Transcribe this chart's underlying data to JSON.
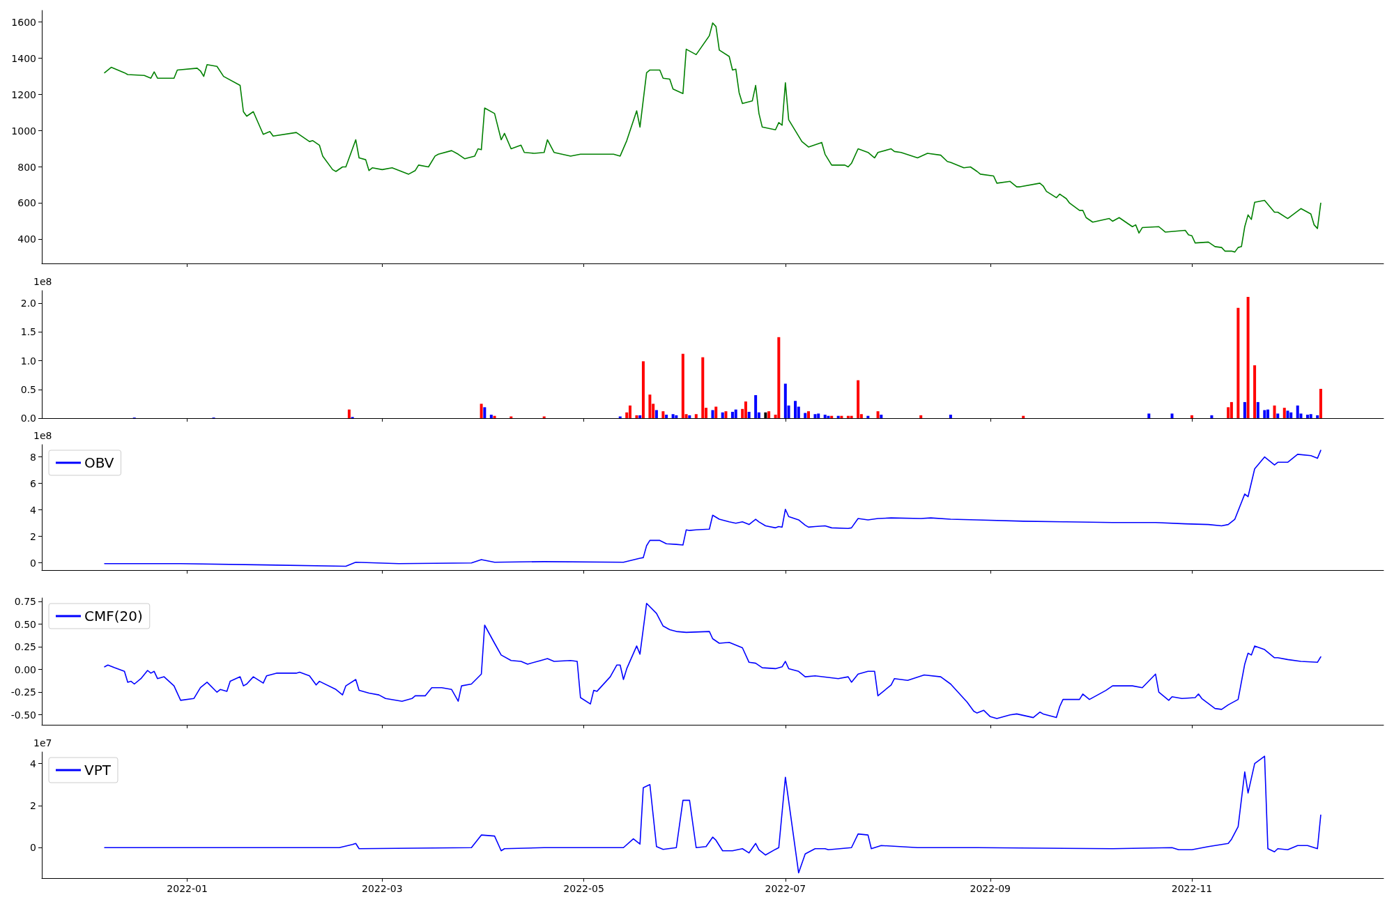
{
  "chart_data": [
    {
      "type": "line",
      "tick_labels": "y",
      "grid": false,
      "legend": false,
      "xlim": [
        "2021-11-18",
        "2022-12-29"
      ],
      "xticks": [
        "2022-01",
        "2022-03",
        "2022-05",
        "2022-07",
        "2022-09",
        "2022-11"
      ],
      "ylim": [
        267,
        1664
      ],
      "yticks": [
        400,
        600,
        800,
        1000,
        1200,
        1400,
        1600
      ],
      "x": [
        "2021-12-07",
        "2021-12-09",
        "2021-12-13",
        "2021-12-14",
        "2021-12-19",
        "2021-12-21",
        "2021-12-22",
        "2021-12-23",
        "2021-12-28",
        "2021-12-29",
        "2022-01-04",
        "2022-01-05",
        "2022-01-06",
        "2022-01-07",
        "2022-01-10",
        "2022-01-12",
        "2022-01-17",
        "2022-01-18",
        "2022-01-19",
        "2022-01-21",
        "2022-01-24",
        "2022-01-26",
        "2022-01-27",
        "2022-02-03",
        "2022-02-07",
        "2022-02-08",
        "2022-02-10",
        "2022-02-11",
        "2022-02-14",
        "2022-02-15",
        "2022-02-17",
        "2022-02-18",
        "2022-02-21",
        "2022-02-22",
        "2022-02-24",
        "2022-02-25",
        "2022-02-26",
        "2022-03-01",
        "2022-03-04",
        "2022-03-09",
        "2022-03-11",
        "2022-03-12",
        "2022-03-15",
        "2022-03-17",
        "2022-03-18",
        "2022-03-22",
        "2022-03-24",
        "2022-03-26",
        "2022-03-29",
        "2022-03-30",
        "2022-03-31",
        "2022-04-01",
        "2022-04-04",
        "2022-04-06",
        "2022-04-07",
        "2022-04-09",
        "2022-04-12",
        "2022-04-13",
        "2022-04-16",
        "2022-04-19",
        "2022-04-20",
        "2022-04-22",
        "2022-04-27",
        "2022-04-30",
        "2022-05-10",
        "2022-05-12",
        "2022-05-14",
        "2022-05-17",
        "2022-05-18",
        "2022-05-20",
        "2022-05-21",
        "2022-05-24",
        "2022-05-25",
        "2022-05-27",
        "2022-05-28",
        "2022-05-31",
        "2022-06-01",
        "2022-06-04",
        "2022-06-08",
        "2022-06-09",
        "2022-06-10",
        "2022-06-11",
        "2022-06-14",
        "2022-06-15",
        "2022-06-16",
        "2022-06-17",
        "2022-06-18",
        "2022-06-21",
        "2022-06-22",
        "2022-06-23",
        "2022-06-24",
        "2022-06-28",
        "2022-06-29",
        "2022-06-30",
        "2022-07-01",
        "2022-07-02",
        "2022-07-06",
        "2022-07-08",
        "2022-07-12",
        "2022-07-13",
        "2022-07-15",
        "2022-07-19",
        "2022-07-20",
        "2022-07-21",
        "2022-07-23",
        "2022-07-26",
        "2022-07-28",
        "2022-07-29",
        "2022-08-02",
        "2022-08-03",
        "2022-08-05",
        "2022-08-10",
        "2022-08-13",
        "2022-08-17",
        "2022-08-19",
        "2022-08-20",
        "2022-08-24",
        "2022-08-26",
        "2022-08-28",
        "2022-08-29",
        "2022-09-02",
        "2022-09-03",
        "2022-09-07",
        "2022-09-09",
        "2022-09-10",
        "2022-09-16",
        "2022-09-17",
        "2022-09-18",
        "2022-09-21",
        "2022-09-22",
        "2022-09-24",
        "2022-09-25",
        "2022-09-28",
        "2022-09-29",
        "2022-09-30",
        "2022-10-02",
        "2022-10-07",
        "2022-10-08",
        "2022-10-10",
        "2022-10-14",
        "2022-10-15",
        "2022-10-16",
        "2022-10-17",
        "2022-10-22",
        "2022-10-24",
        "2022-10-30",
        "2022-10-31",
        "2022-11-01",
        "2022-11-02",
        "2022-11-06",
        "2022-11-08",
        "2022-11-10",
        "2022-11-11",
        "2022-11-13",
        "2022-11-14",
        "2022-11-15",
        "2022-11-16",
        "2022-11-17",
        "2022-11-18",
        "2022-11-19",
        "2022-11-20",
        "2022-11-23",
        "2022-11-26",
        "2022-11-27",
        "2022-11-30",
        "2022-12-04",
        "2022-12-07",
        "2022-12-08",
        "2022-12-09",
        "2022-12-10"
      ],
      "series": [
        {
          "color": "#008000",
          "values": [
            1320,
            1350,
            1320,
            1310,
            1305,
            1290,
            1325,
            1290,
            1290,
            1335,
            1345,
            1330,
            1300,
            1365,
            1355,
            1300,
            1250,
            1105,
            1080,
            1105,
            980,
            995,
            970,
            990,
            940,
            945,
            920,
            860,
            785,
            775,
            800,
            800,
            950,
            850,
            840,
            780,
            795,
            785,
            795,
            760,
            780,
            810,
            800,
            860,
            870,
            890,
            870,
            845,
            860,
            900,
            895,
            1125,
            1095,
            950,
            985,
            900,
            920,
            880,
            875,
            880,
            950,
            880,
            860,
            870,
            870,
            860,
            945,
            1110,
            1020,
            1320,
            1335,
            1335,
            1290,
            1285,
            1230,
            1205,
            1450,
            1420,
            1525,
            1595,
            1575,
            1445,
            1410,
            1335,
            1340,
            1210,
            1150,
            1165,
            1250,
            1095,
            1020,
            1005,
            1045,
            1030,
            1265,
            1060,
            940,
            910,
            935,
            870,
            810,
            810,
            800,
            820,
            900,
            880,
            850,
            880,
            900,
            885,
            880,
            850,
            875,
            865,
            830,
            825,
            795,
            800,
            775,
            760,
            750,
            710,
            720,
            690,
            690,
            710,
            695,
            665,
            630,
            650,
            625,
            600,
            560,
            560,
            520,
            495,
            515,
            500,
            520,
            470,
            480,
            435,
            465,
            470,
            440,
            450,
            425,
            420,
            380,
            385,
            360,
            355,
            335,
            335,
            330,
            355,
            360,
            470,
            535,
            510,
            605,
            615,
            550,
            550,
            515,
            570,
            540,
            480,
            460,
            600
          ]
        }
      ]
    },
    {
      "type": "bar",
      "tick_labels": "y",
      "grid": false,
      "ylabel": "1e8",
      "xlim": [
        "2021-11-18",
        "2022-12-29"
      ],
      "xticks": [
        "2022-01",
        "2022-03",
        "2022-05",
        "2022-07",
        "2022-09",
        "2022-11"
      ],
      "ylim": [
        0,
        2.22
      ],
      "yticks": [
        {
          "value": 0,
          "label": "0.0"
        },
        {
          "value": 0.5,
          "label": "0.5"
        },
        {
          "value": 1,
          "label": "1.0"
        },
        {
          "value": 1.5,
          "label": "1.5"
        },
        {
          "value": 2,
          "label": "2.0"
        }
      ],
      "x": [
        "2021-12-16",
        "2022-01-09",
        "2022-02-19",
        "2022-02-20",
        "2022-03-31",
        "2022-04-01",
        "2022-04-03",
        "2022-04-04",
        "2022-04-09",
        "2022-04-19",
        "2022-05-12",
        "2022-05-14",
        "2022-05-15",
        "2022-05-17",
        "2022-05-18",
        "2022-05-19",
        "2022-05-21",
        "2022-05-22",
        "2022-05-23",
        "2022-05-25",
        "2022-05-26",
        "2022-05-28",
        "2022-05-29",
        "2022-05-31",
        "2022-06-01",
        "2022-06-02",
        "2022-06-04",
        "2022-06-06",
        "2022-06-07",
        "2022-06-09",
        "2022-06-10",
        "2022-06-12",
        "2022-06-13",
        "2022-06-15",
        "2022-06-16",
        "2022-06-18",
        "2022-06-19",
        "2022-06-20",
        "2022-06-22",
        "2022-06-23",
        "2022-06-25",
        "2022-06-26",
        "2022-06-28",
        "2022-06-29",
        "2022-07-01",
        "2022-07-02",
        "2022-07-04",
        "2022-07-05",
        "2022-07-07",
        "2022-07-08",
        "2022-07-10",
        "2022-07-11",
        "2022-07-13",
        "2022-07-14",
        "2022-07-15",
        "2022-07-17",
        "2022-07-18",
        "2022-07-20",
        "2022-07-21",
        "2022-07-23",
        "2022-07-24",
        "2022-07-26",
        "2022-07-29",
        "2022-07-30",
        "2022-08-11",
        "2022-08-20",
        "2022-09-11",
        "2022-10-19",
        "2022-10-26",
        "2022-11-01",
        "2022-11-07",
        "2022-11-12",
        "2022-11-13",
        "2022-11-15",
        "2022-11-17",
        "2022-11-18",
        "2022-11-20",
        "2022-11-21",
        "2022-11-23",
        "2022-11-24",
        "2022-11-26",
        "2022-11-27",
        "2022-11-29",
        "2022-11-30",
        "2022-12-01",
        "2022-12-03",
        "2022-12-04",
        "2022-12-06",
        "2022-12-07",
        "2022-12-09",
        "2022-12-10"
      ],
      "values": [
        0.01,
        0.01,
        0.15,
        0.02,
        0.25,
        0.19,
        0.06,
        0.04,
        0.03,
        0.03,
        0.03,
        0.1,
        0.22,
        0.05,
        0.05,
        0.99,
        0.41,
        0.25,
        0.14,
        0.12,
        0.06,
        0.07,
        0.05,
        1.12,
        0.07,
        0.05,
        0.07,
        1.06,
        0.18,
        0.14,
        0.2,
        0.1,
        0.12,
        0.11,
        0.15,
        0.16,
        0.29,
        0.11,
        0.4,
        0.1,
        0.1,
        0.12,
        0.06,
        1.41,
        0.6,
        0.22,
        0.3,
        0.2,
        0.09,
        0.12,
        0.07,
        0.08,
        0.06,
        0.04,
        0.04,
        0.04,
        0.04,
        0.04,
        0.04,
        0.66,
        0.07,
        0.04,
        0.12,
        0.06,
        0.05,
        0.06,
        0.04,
        0.08,
        0.08,
        0.05,
        0.05,
        0.19,
        0.28,
        1.92,
        0.28,
        2.11,
        0.92,
        0.28,
        0.14,
        0.15,
        0.22,
        0.08,
        0.18,
        0.13,
        0.1,
        0.22,
        0.08,
        0.06,
        0.07,
        0.05,
        0.51
      ],
      "colors": [
        "#0000ff",
        "#0000ff",
        "#ff0000",
        "#0000ff",
        "#ff0000",
        "#0000ff",
        "#0000ff",
        "#ff0000",
        "#ff0000",
        "#ff0000",
        "#0000ff",
        "#ff0000",
        "#ff0000",
        "#ff0000",
        "#0000ff",
        "#ff0000",
        "#ff0000",
        "#ff0000",
        "#0000ff",
        "#ff0000",
        "#0000ff",
        "#0000ff",
        "#0000ff",
        "#ff0000",
        "#ff0000",
        "#0000ff",
        "#ff0000",
        "#ff0000",
        "#ff0000",
        "#0000ff",
        "#ff0000",
        "#0000ff",
        "#ff0000",
        "#0000ff",
        "#0000ff",
        "#ff0000",
        "#ff0000",
        "#0000ff",
        "#0000ff",
        "#0000ff",
        "#000000",
        "#ff0000",
        "#ff0000",
        "#ff0000",
        "#0000ff",
        "#0000ff",
        "#0000ff",
        "#0000ff",
        "#0000ff",
        "#ff0000",
        "#0000ff",
        "#0000ff",
        "#0000ff",
        "#0000ff",
        "#ff0000",
        "#0000ff",
        "#ff0000",
        "#ff0000",
        "#ff0000",
        "#ff0000",
        "#ff0000",
        "#0000ff",
        "#ff0000",
        "#0000ff",
        "#ff0000",
        "#0000ff",
        "#ff0000",
        "#0000ff",
        "#0000ff",
        "#ff0000",
        "#0000ff",
        "#ff0000",
        "#ff0000",
        "#ff0000",
        "#0000ff",
        "#ff0000",
        "#ff0000",
        "#0000ff",
        "#0000ff",
        "#0000ff",
        "#ff0000",
        "#0000ff",
        "#ff0000",
        "#0000ff",
        "#0000ff",
        "#0000ff",
        "#0000ff",
        "#0000ff",
        "#0000ff",
        "#0000ff",
        "#ff0000"
      ]
    },
    {
      "type": "line",
      "tick_labels": "y",
      "grid": false,
      "legend": "top left",
      "ylabel": "1e8",
      "xlim": [
        "2021-11-18",
        "2022-12-29"
      ],
      "xticks": [
        "2022-01",
        "2022-03",
        "2022-05",
        "2022-07",
        "2022-09",
        "2022-11"
      ],
      "ylim": [
        -0.54,
        8.93
      ],
      "yticks": [
        0,
        2,
        4,
        6,
        8
      ],
      "x": [
        "2021-12-07",
        "2021-12-30",
        "2022-01-25",
        "2022-02-18",
        "2022-02-21",
        "2022-03-06",
        "2022-03-28",
        "2022-03-31",
        "2022-04-04",
        "2022-04-19",
        "2022-05-13",
        "2022-05-18",
        "2022-05-19",
        "2022-05-20",
        "2022-05-21",
        "2022-05-24",
        "2022-05-26",
        "2022-05-29",
        "2022-05-31",
        "2022-06-01",
        "2022-06-02",
        "2022-06-04",
        "2022-06-08",
        "2022-06-09",
        "2022-06-11",
        "2022-06-14",
        "2022-06-16",
        "2022-06-18",
        "2022-06-20",
        "2022-06-22",
        "2022-06-23",
        "2022-06-25",
        "2022-06-28",
        "2022-06-29",
        "2022-06-30",
        "2022-07-01",
        "2022-07-02",
        "2022-07-05",
        "2022-07-07",
        "2022-07-08",
        "2022-07-10",
        "2022-07-13",
        "2022-07-15",
        "2022-07-20",
        "2022-07-21",
        "2022-07-23",
        "2022-07-26",
        "2022-07-29",
        "2022-08-02",
        "2022-08-11",
        "2022-08-14",
        "2022-08-20",
        "2022-08-28",
        "2022-09-11",
        "2022-09-24",
        "2022-10-08",
        "2022-10-21",
        "2022-10-30",
        "2022-11-06",
        "2022-11-10",
        "2022-11-12",
        "2022-11-14",
        "2022-11-17",
        "2022-11-18",
        "2022-11-20",
        "2022-11-23",
        "2022-11-26",
        "2022-11-27",
        "2022-11-30",
        "2022-12-03",
        "2022-12-07",
        "2022-12-09",
        "2022-12-10"
      ],
      "series": [
        {
          "name": "OBV",
          "color": "#0000ff",
          "values": [
            -0.05,
            -0.05,
            -0.15,
            -0.25,
            0.05,
            -0.05,
            0,
            0.25,
            0.05,
            0.1,
            0.05,
            0.35,
            0.4,
            1.3,
            1.7,
            1.7,
            1.45,
            1.4,
            1.35,
            2.5,
            2.45,
            2.5,
            2.55,
            3.6,
            3.3,
            3.1,
            3.0,
            3.1,
            2.9,
            3.3,
            3.1,
            2.8,
            2.65,
            2.75,
            2.7,
            4.05,
            3.5,
            3.25,
            2.85,
            2.7,
            2.75,
            2.8,
            2.65,
            2.6,
            2.65,
            3.35,
            3.25,
            3.35,
            3.4,
            3.35,
            3.4,
            3.3,
            3.25,
            3.15,
            3.1,
            3.05,
            3.05,
            2.95,
            2.9,
            2.8,
            2.9,
            3.3,
            5.2,
            5.0,
            7.1,
            8.0,
            7.4,
            7.6,
            7.6,
            8.2,
            8.1,
            7.9,
            8.5
          ]
        }
      ]
    },
    {
      "type": "line",
      "tick_labels": "y",
      "grid": false,
      "legend": "top left",
      "xlim": [
        "2021-11-18",
        "2022-12-29"
      ],
      "xticks": [
        "2022-01",
        "2022-03",
        "2022-05",
        "2022-07",
        "2022-09",
        "2022-11"
      ],
      "ylim": [
        -0.61,
        0.79
      ],
      "yticks": [
        {
          "value": -0.5,
          "label": "-0.50"
        },
        -0.25,
        {
          "value": 0,
          "label": "0.00"
        },
        0.25,
        {
          "value": 0.5,
          "label": "0.50"
        },
        0.75
      ],
      "x": [
        "2021-12-07",
        "2021-12-08",
        "2021-12-10",
        "2021-12-13",
        "2021-12-14",
        "2021-12-15",
        "2021-12-16",
        "2021-12-18",
        "2021-12-20",
        "2021-12-21",
        "2021-12-22",
        "2021-12-23",
        "2021-12-25",
        "2021-12-28",
        "2021-12-30",
        "2022-01-03",
        "2022-01-05",
        "2022-01-07",
        "2022-01-10",
        "2022-01-11",
        "2022-01-13",
        "2022-01-14",
        "2022-01-17",
        "2022-01-18",
        "2022-01-19",
        "2022-01-21",
        "2022-01-24",
        "2022-01-25",
        "2022-01-28",
        "2022-02-03",
        "2022-02-04",
        "2022-02-07",
        "2022-02-09",
        "2022-02-10",
        "2022-02-15",
        "2022-02-17",
        "2022-02-18",
        "2022-02-21",
        "2022-02-22",
        "2022-02-25",
        "2022-02-28",
        "2022-03-02",
        "2022-03-07",
        "2022-03-10",
        "2022-03-11",
        "2022-03-14",
        "2022-03-16",
        "2022-03-19",
        "2022-03-22",
        "2022-03-24",
        "2022-03-25",
        "2022-03-28",
        "2022-03-31",
        "2022-04-01",
        "2022-04-04",
        "2022-04-06",
        "2022-04-09",
        "2022-04-12",
        "2022-04-14",
        "2022-04-18",
        "2022-04-20",
        "2022-04-22",
        "2022-04-27",
        "2022-04-29",
        "2022-04-30",
        "2022-05-03",
        "2022-05-04",
        "2022-05-05",
        "2022-05-09",
        "2022-05-11",
        "2022-05-12",
        "2022-05-13",
        "2022-05-14",
        "2022-05-17",
        "2022-05-18",
        "2022-05-20",
        "2022-05-23",
        "2022-05-25",
        "2022-05-27",
        "2022-05-29",
        "2022-06-01",
        "2022-06-08",
        "2022-06-09",
        "2022-06-11",
        "2022-06-14",
        "2022-06-18",
        "2022-06-20",
        "2022-06-22",
        "2022-06-24",
        "2022-06-28",
        "2022-06-30",
        "2022-07-01",
        "2022-07-02",
        "2022-07-05",
        "2022-07-07",
        "2022-07-10",
        "2022-07-17",
        "2022-07-20",
        "2022-07-21",
        "2022-07-23",
        "2022-07-26",
        "2022-07-28",
        "2022-07-29",
        "2022-08-02",
        "2022-08-03",
        "2022-08-07",
        "2022-08-12",
        "2022-08-17",
        "2022-08-20",
        "2022-08-25",
        "2022-08-27",
        "2022-08-28",
        "2022-08-30",
        "2022-09-01",
        "2022-09-03",
        "2022-09-07",
        "2022-09-09",
        "2022-09-14",
        "2022-09-16",
        "2022-09-17",
        "2022-09-21",
        "2022-09-22",
        "2022-09-23",
        "2022-09-28",
        "2022-09-29",
        "2022-10-01",
        "2022-10-06",
        "2022-10-08",
        "2022-10-14",
        "2022-10-17",
        "2022-10-21",
        "2022-10-22",
        "2022-10-25",
        "2022-10-26",
        "2022-10-29",
        "2022-11-02",
        "2022-11-03",
        "2022-11-04",
        "2022-11-08",
        "2022-11-10",
        "2022-11-12",
        "2022-11-15",
        "2022-11-17",
        "2022-11-18",
        "2022-11-19",
        "2022-11-20",
        "2022-11-23",
        "2022-11-26",
        "2022-11-27",
        "2022-11-30",
        "2022-12-04",
        "2022-12-09",
        "2022-12-10"
      ],
      "series": [
        {
          "name": "CMF(20)",
          "color": "#0000ff",
          "values": [
            0.03,
            0.05,
            0.02,
            -0.02,
            -0.14,
            -0.13,
            -0.16,
            -0.1,
            -0.01,
            -0.04,
            -0.02,
            -0.1,
            -0.08,
            -0.18,
            -0.34,
            -0.32,
            -0.2,
            -0.14,
            -0.25,
            -0.22,
            -0.24,
            -0.13,
            -0.08,
            -0.18,
            -0.16,
            -0.08,
            -0.15,
            -0.07,
            -0.04,
            -0.04,
            -0.03,
            -0.07,
            -0.17,
            -0.13,
            -0.22,
            -0.28,
            -0.18,
            -0.11,
            -0.23,
            -0.26,
            -0.28,
            -0.32,
            -0.35,
            -0.32,
            -0.29,
            -0.29,
            -0.2,
            -0.2,
            -0.22,
            -0.35,
            -0.18,
            -0.16,
            -0.05,
            0.49,
            0.29,
            0.16,
            0.1,
            0.09,
            0.06,
            0.1,
            0.12,
            0.09,
            0.1,
            0.09,
            -0.31,
            -0.38,
            -0.23,
            -0.24,
            -0.08,
            0.05,
            0.05,
            -0.11,
            0.01,
            0.26,
            0.17,
            0.73,
            0.62,
            0.48,
            0.44,
            0.42,
            0.41,
            0.42,
            0.34,
            0.29,
            0.3,
            0.24,
            0.08,
            0.07,
            0.02,
            0.01,
            0.03,
            0.09,
            0.01,
            -0.02,
            -0.08,
            -0.07,
            -0.1,
            -0.08,
            -0.14,
            -0.05,
            -0.02,
            -0.02,
            -0.29,
            -0.17,
            -0.1,
            -0.12,
            -0.06,
            -0.08,
            -0.16,
            -0.36,
            -0.46,
            -0.48,
            -0.45,
            -0.52,
            -0.54,
            -0.5,
            -0.49,
            -0.53,
            -0.47,
            -0.49,
            -0.53,
            -0.41,
            -0.33,
            -0.33,
            -0.27,
            -0.33,
            -0.23,
            -0.18,
            -0.18,
            -0.2,
            -0.05,
            -0.25,
            -0.34,
            -0.3,
            -0.32,
            -0.31,
            -0.27,
            -0.32,
            -0.43,
            -0.44,
            -0.39,
            -0.33,
            0.06,
            0.18,
            0.16,
            0.26,
            0.22,
            0.13,
            0.13,
            0.11,
            0.09,
            0.08,
            0.14
          ]
        }
      ]
    },
    {
      "type": "line",
      "grid": false,
      "legend": "top left",
      "ylabel": "1e7",
      "xlim": [
        "2021-11-18",
        "2022-12-29"
      ],
      "xticks": [
        "2022-01",
        "2022-03",
        "2022-05",
        "2022-07",
        "2022-09",
        "2022-11"
      ],
      "ylim": [
        -1.45,
        4.55
      ],
      "yticks": [
        0,
        2,
        4
      ],
      "x": [
        "2021-12-07",
        "2022-02-16",
        "2022-02-20",
        "2022-02-21",
        "2022-02-22",
        "2022-03-28",
        "2022-03-31",
        "2022-04-04",
        "2022-04-06",
        "2022-04-07",
        "2022-04-19",
        "2022-05-13",
        "2022-05-16",
        "2022-05-18",
        "2022-05-19",
        "2022-05-21",
        "2022-05-23",
        "2022-05-25",
        "2022-05-29",
        "2022-05-31",
        "2022-06-02",
        "2022-06-04",
        "2022-06-07",
        "2022-06-09",
        "2022-06-10",
        "2022-06-12",
        "2022-06-15",
        "2022-06-18",
        "2022-06-20",
        "2022-06-22",
        "2022-06-23",
        "2022-06-25",
        "2022-06-28",
        "2022-06-29",
        "2022-07-01",
        "2022-07-05",
        "2022-07-07",
        "2022-07-10",
        "2022-07-13",
        "2022-07-14",
        "2022-07-21",
        "2022-07-23",
        "2022-07-26",
        "2022-07-27",
        "2022-07-30",
        "2022-08-10",
        "2022-08-28",
        "2022-10-08",
        "2022-10-26",
        "2022-10-28",
        "2022-11-01",
        "2022-11-06",
        "2022-11-12",
        "2022-11-13",
        "2022-11-15",
        "2022-11-17",
        "2022-11-18",
        "2022-11-20",
        "2022-11-23",
        "2022-11-24",
        "2022-11-26",
        "2022-11-27",
        "2022-11-30",
        "2022-12-03",
        "2022-12-06",
        "2022-12-07",
        "2022-12-09",
        "2022-12-10"
      ],
      "series": [
        {
          "name": "VPT",
          "color": "#0000ff",
          "values": [
            0,
            0,
            0.15,
            0.2,
            -0.05,
            0,
            0.6,
            0.55,
            -0.15,
            -0.05,
            0,
            0,
            0.42,
            0.17,
            2.85,
            3.0,
            0.05,
            -0.08,
            0,
            2.25,
            2.25,
            0,
            0.05,
            0.5,
            0.35,
            -0.15,
            -0.15,
            -0.05,
            -0.25,
            0.2,
            -0.1,
            -0.35,
            -0.08,
            0,
            3.35,
            -1.2,
            -0.3,
            -0.05,
            -0.05,
            -0.1,
            0,
            0.65,
            0.6,
            -0.05,
            0.1,
            0,
            0,
            -0.05,
            0,
            -0.1,
            -0.1,
            0.05,
            0.2,
            0.4,
            1.0,
            3.6,
            2.6,
            4.0,
            4.35,
            -0.05,
            -0.2,
            -0.05,
            -0.1,
            0.1,
            0.1,
            0.05,
            -0.05,
            1.55
          ]
        }
      ]
    }
  ]
}
